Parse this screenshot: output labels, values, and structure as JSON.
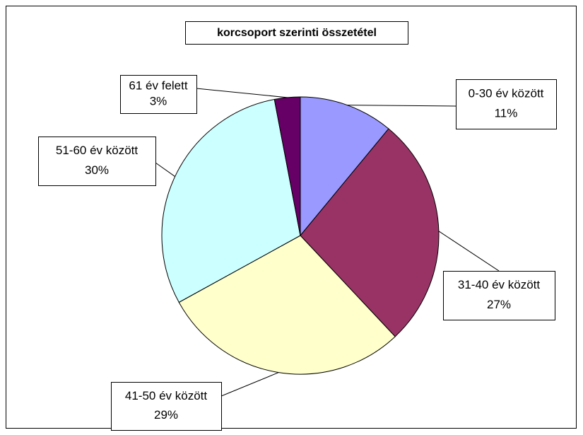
{
  "chart_data": {
    "type": "pie",
    "title": "korcsoport szerinti összetétel",
    "categories": [
      "0-30 év között",
      "31-40 év között",
      "41-50 év között",
      "51-60 év között",
      "61 év felett"
    ],
    "values": [
      11,
      27,
      29,
      30,
      3
    ],
    "value_labels": [
      "11%",
      "27%",
      "29%",
      "30%",
      "3%"
    ],
    "colors": [
      "#9999ff",
      "#993366",
      "#ffffcc",
      "#ccffff",
      "#660066"
    ]
  }
}
